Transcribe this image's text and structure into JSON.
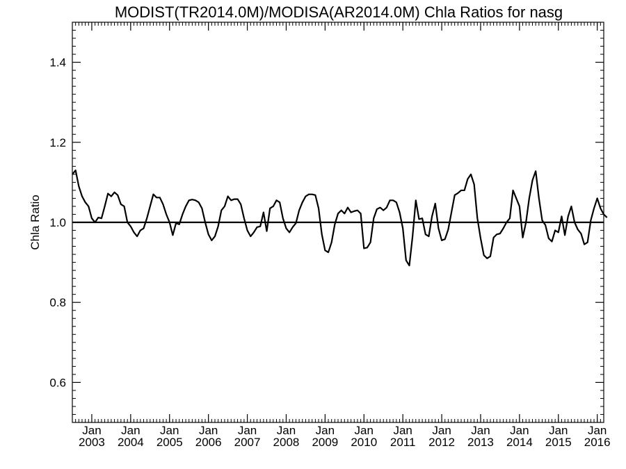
{
  "chart_data": {
    "type": "line",
    "title": "MODIST(TR2014.0M)/MODISA(AR2014.0M)  Chla Ratios for nasg",
    "xlabel": "",
    "ylabel": "Chla Ratio",
    "ylim": [
      0.5,
      1.5
    ],
    "y_ticks": [
      0.6,
      0.8,
      1.0,
      1.2,
      1.4
    ],
    "y_tick_labels": [
      "0.6",
      "0.8",
      "1.0",
      "1.2",
      "1.4"
    ],
    "xlim": [
      "2002-07",
      "2016-03"
    ],
    "x_ticks": [
      {
        "month": "Jan",
        "year": "2003",
        "date": "2003-01"
      },
      {
        "month": "Jan",
        "year": "2004",
        "date": "2004-01"
      },
      {
        "month": "Jan",
        "year": "2005",
        "date": "2005-01"
      },
      {
        "month": "Jan",
        "year": "2006",
        "date": "2006-01"
      },
      {
        "month": "Jan",
        "year": "2007",
        "date": "2007-01"
      },
      {
        "month": "Jan",
        "year": "2008",
        "date": "2008-01"
      },
      {
        "month": "Jan",
        "year": "2009",
        "date": "2009-01"
      },
      {
        "month": "Jan",
        "year": "2010",
        "date": "2010-01"
      },
      {
        "month": "Jan",
        "year": "2011",
        "date": "2011-01"
      },
      {
        "month": "Jan",
        "year": "2012",
        "date": "2012-01"
      },
      {
        "month": "Jan",
        "year": "2013",
        "date": "2013-01"
      },
      {
        "month": "Jan",
        "year": "2014",
        "date": "2014-01"
      },
      {
        "month": "Jan",
        "year": "2015",
        "date": "2015-01"
      },
      {
        "month": "Jan",
        "year": "2016",
        "date": "2016-01"
      }
    ],
    "reference_line": 1.0,
    "grid": false,
    "series": [
      {
        "start": "2002-07",
        "step": "1 month",
        "color": "#000000",
        "values": [
          1.12,
          1.13,
          1.09,
          1.065,
          1.05,
          1.04,
          1.01,
          1.0,
          1.012,
          1.01,
          1.04,
          1.072,
          1.065,
          1.075,
          1.068,
          1.045,
          1.04,
          1.0,
          0.99,
          0.975,
          0.965,
          0.98,
          0.985,
          1.01,
          1.04,
          1.07,
          1.062,
          1.062,
          1.045,
          1.02,
          1.0,
          0.968,
          0.998,
          0.995,
          1.02,
          1.04,
          1.055,
          1.057,
          1.055,
          1.05,
          1.035,
          1.0,
          0.97,
          0.955,
          0.965,
          0.99,
          1.03,
          1.04,
          1.065,
          1.055,
          1.058,
          1.058,
          1.045,
          1.01,
          0.98,
          0.965,
          0.975,
          0.988,
          0.99,
          1.025,
          0.978,
          1.035,
          1.04,
          1.055,
          1.05,
          1.01,
          0.985,
          0.975,
          0.988,
          0.998,
          1.03,
          1.05,
          1.065,
          1.07,
          1.07,
          1.068,
          1.035,
          0.97,
          0.93,
          0.925,
          0.95,
          0.995,
          1.022,
          1.03,
          1.022,
          1.037,
          1.025,
          1.028,
          1.03,
          1.022,
          0.935,
          0.937,
          0.95,
          1.01,
          1.033,
          1.037,
          1.03,
          1.037,
          1.055,
          1.055,
          1.05,
          1.025,
          0.985,
          0.905,
          0.892,
          0.965,
          1.055,
          1.008,
          1.01,
          0.97,
          0.965,
          1.015,
          1.047,
          0.985,
          0.955,
          0.958,
          0.982,
          1.025,
          1.068,
          1.073,
          1.08,
          1.08,
          1.108,
          1.12,
          1.095,
          1.01,
          0.96,
          0.918,
          0.91,
          0.915,
          0.962,
          0.97,
          0.972,
          0.985,
          1.0,
          1.01,
          1.08,
          1.06,
          1.04,
          0.962,
          1.0,
          1.06,
          1.105,
          1.128,
          1.06,
          1.005,
          0.993,
          0.96,
          0.952,
          0.98,
          0.975,
          1.015,
          0.968,
          1.015,
          1.04,
          1.0,
          0.982,
          0.972,
          0.945,
          0.95,
          1.005,
          1.035,
          1.06,
          1.035,
          1.02,
          1.012
        ]
      }
    ]
  }
}
